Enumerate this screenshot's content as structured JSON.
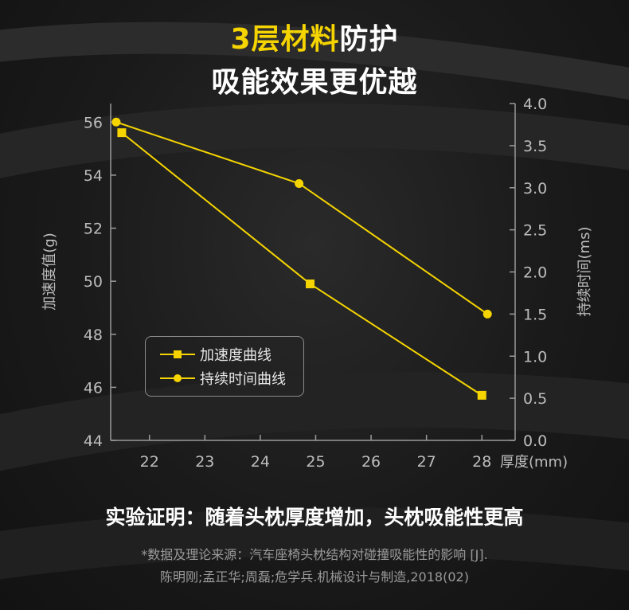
{
  "header": {
    "title_highlight": "3层材料",
    "title_rest": "防护",
    "title_line2": "吸能效果更优越"
  },
  "colors": {
    "accent": "#f5d400",
    "background": "#161616",
    "text": "#ffffff",
    "muted": "#bdbdbd"
  },
  "chart_data": {
    "type": "line",
    "x_label": "厚度(mm)",
    "x_ticks": [
      22,
      23,
      24,
      25,
      26,
      27,
      28
    ],
    "xlim": [
      21.3,
      28.6
    ],
    "y_left": {
      "label": "加速度值(g)",
      "ticks": [
        44,
        46,
        48,
        50,
        52,
        54,
        56
      ],
      "lim": [
        44,
        56.7
      ]
    },
    "y_right": {
      "label": "持续时间(ms)",
      "ticks": [
        "0.0",
        "0.5",
        "1.0",
        "1.5",
        "2.0",
        "2.5",
        "3.0",
        "3.5",
        "4.0"
      ],
      "lim": [
        0,
        4.0
      ]
    },
    "series": [
      {
        "name": "加速度曲线",
        "axis": "left",
        "marker": "square",
        "x": [
          21.5,
          24.9,
          28.0
        ],
        "y": [
          55.6,
          49.9,
          45.7
        ]
      },
      {
        "name": "持续时间曲线",
        "axis": "right",
        "marker": "circle",
        "x": [
          21.4,
          24.7,
          28.1
        ],
        "y": [
          3.78,
          3.05,
          1.5
        ]
      }
    ],
    "grid": false,
    "legend_position": "lower-left"
  },
  "conclusion": "实验证明：随着头枕厚度增加，头枕吸能性更高",
  "reference": {
    "line1": "*数据及理论来源：汽车座椅头枕结构对碰撞吸能性的影响 [J].",
    "line2": "陈明刚;孟正华;周磊;危学兵.机械设计与制造,2018(02)"
  }
}
